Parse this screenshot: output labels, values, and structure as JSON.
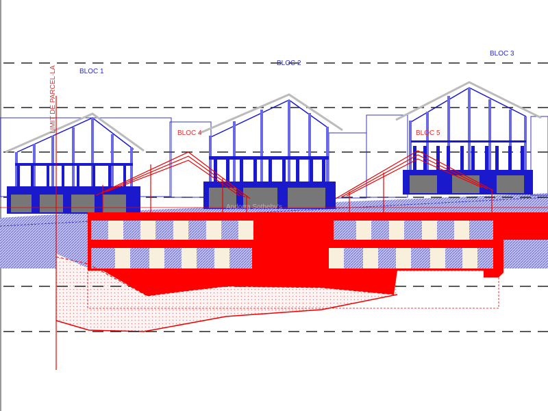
{
  "labels": {
    "bloc1": "BLOC 1",
    "bloc2": "BLOC 2",
    "bloc3": "BLOC 3",
    "bloc4": "BLOC 4",
    "bloc5": "BLOC 5",
    "boundary": "LIMIT DE PARCEL·LA"
  },
  "watermark": "Andorra Sotheby's",
  "colors": {
    "existing": "#1a1acc",
    "proposed": "#ff0000",
    "hatch": "#8c8ce8",
    "window": "#f8f0dc",
    "dash": "#222222"
  }
}
